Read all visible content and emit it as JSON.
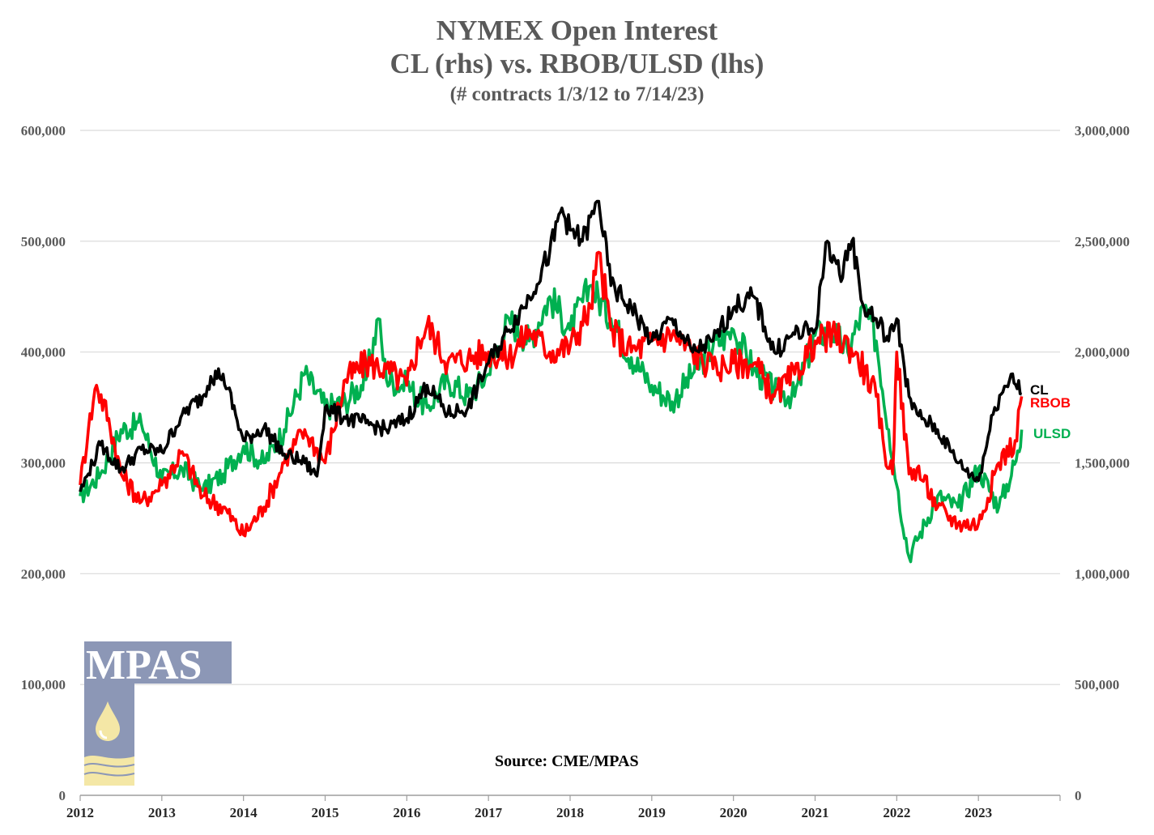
{
  "chart_data": {
    "type": "line",
    "title": "NYMEX Open Interest",
    "subtitle": "CL (rhs) vs. RBOB/ULSD (lhs)",
    "note": "(# contracts 1/3/12 to 7/14/23)",
    "source": "Source: CME/MPAS",
    "logo_text": "MPAS",
    "x_ticks": [
      "2012",
      "2013",
      "2014",
      "2015",
      "2016",
      "2017",
      "2018",
      "2019",
      "2020",
      "2021",
      "2022",
      "2023"
    ],
    "xlim": [
      2012.0,
      2024.0
    ],
    "y_left": {
      "ticks": [
        0,
        100000,
        200000,
        300000,
        400000,
        500000,
        600000
      ],
      "tick_labels": [
        "0",
        "100,000",
        "200,000",
        "300,000",
        "400,000",
        "500,000",
        "600,000"
      ],
      "ylim": [
        0,
        600000
      ]
    },
    "y_right": {
      "ticks": [
        0,
        500000,
        1000000,
        1500000,
        2000000,
        2500000,
        3000000
      ],
      "tick_labels": [
        "0",
        "500,000",
        "1,000,000",
        "1,500,000",
        "2,000,000",
        "2,500,000",
        "3,000,000"
      ],
      "ylim": [
        0,
        3000000
      ]
    },
    "grid": true,
    "legend": "inline-right",
    "series": [
      {
        "name": "ULSD",
        "axis": "left",
        "color": "#00B050",
        "x": [
          2012.0,
          2012.25,
          2012.5,
          2012.75,
          2013.0,
          2013.25,
          2013.5,
          2013.75,
          2014.0,
          2014.25,
          2014.5,
          2014.75,
          2015.0,
          2015.25,
          2015.5,
          2015.65,
          2015.75,
          2016.0,
          2016.25,
          2016.5,
          2016.75,
          2017.0,
          2017.25,
          2017.5,
          2017.75,
          2018.0,
          2018.25,
          2018.5,
          2018.75,
          2019.0,
          2019.25,
          2019.5,
          2019.75,
          2020.0,
          2020.25,
          2020.5,
          2020.75,
          2021.0,
          2021.2,
          2021.4,
          2021.6,
          2021.75,
          2021.9,
          2022.0,
          2022.15,
          2022.25,
          2022.5,
          2022.75,
          2023.0,
          2023.25,
          2023.5,
          2023.53
        ],
        "values": [
          270000,
          290000,
          330000,
          335000,
          285000,
          295000,
          275000,
          290000,
          315000,
          300000,
          330000,
          380000,
          350000,
          355000,
          375000,
          430000,
          375000,
          370000,
          350000,
          375000,
          360000,
          380000,
          430000,
          410000,
          450000,
          420000,
          460000,
          430000,
          395000,
          370000,
          355000,
          380000,
          405000,
          420000,
          385000,
          365000,
          360000,
          415000,
          420000,
          400000,
          440000,
          410000,
          330000,
          280000,
          215000,
          230000,
          270000,
          260000,
          295000,
          260000,
          310000,
          330000
        ]
      },
      {
        "name": "RBOB",
        "axis": "left",
        "color": "#FF0000",
        "x": [
          2012.0,
          2012.1,
          2012.2,
          2012.35,
          2012.5,
          2012.75,
          2013.0,
          2013.25,
          2013.5,
          2013.75,
          2014.0,
          2014.25,
          2014.5,
          2014.75,
          2015.0,
          2015.25,
          2015.5,
          2015.75,
          2016.0,
          2016.15,
          2016.25,
          2016.5,
          2016.75,
          2017.0,
          2017.25,
          2017.5,
          2017.75,
          2018.0,
          2018.25,
          2018.35,
          2018.5,
          2018.75,
          2019.0,
          2019.25,
          2019.5,
          2019.75,
          2020.0,
          2020.25,
          2020.5,
          2020.75,
          2021.0,
          2021.25,
          2021.5,
          2021.75,
          2021.85,
          2021.95,
          2022.0,
          2022.15,
          2022.25,
          2022.5,
          2022.75,
          2023.0,
          2023.25,
          2023.45,
          2023.53
        ],
        "values": [
          280000,
          330000,
          370000,
          340000,
          290000,
          265000,
          280000,
          310000,
          270000,
          260000,
          235000,
          260000,
          300000,
          330000,
          300000,
          375000,
          390000,
          385000,
          370000,
          410000,
          425000,
          390000,
          395000,
          400000,
          395000,
          420000,
          400000,
          405000,
          440000,
          490000,
          420000,
          400000,
          410000,
          415000,
          400000,
          385000,
          390000,
          390000,
          360000,
          380000,
          410000,
          415000,
          400000,
          360000,
          310000,
          290000,
          400000,
          290000,
          295000,
          260000,
          245000,
          245000,
          300000,
          320000,
          360000
        ]
      },
      {
        "name": "CL",
        "axis": "right",
        "color": "#000000",
        "x": [
          2012.0,
          2012.1,
          2012.25,
          2012.5,
          2012.75,
          2013.0,
          2013.25,
          2013.5,
          2013.6,
          2013.75,
          2014.0,
          2014.25,
          2014.5,
          2014.75,
          2014.9,
          2015.0,
          2015.25,
          2015.5,
          2015.75,
          2016.0,
          2016.25,
          2016.5,
          2016.75,
          2017.0,
          2017.25,
          2017.5,
          2017.75,
          2017.9,
          2018.0,
          2018.15,
          2018.35,
          2018.5,
          2018.75,
          2019.0,
          2019.25,
          2019.5,
          2019.75,
          2020.0,
          2020.25,
          2020.5,
          2020.75,
          2021.0,
          2021.15,
          2021.3,
          2021.45,
          2021.6,
          2021.75,
          2021.9,
          2022.0,
          2022.15,
          2022.25,
          2022.5,
          2022.75,
          2023.0,
          2023.2,
          2023.4,
          2023.53
        ],
        "values": [
          1370000,
          1450000,
          1580000,
          1470000,
          1560000,
          1550000,
          1720000,
          1800000,
          1890000,
          1900000,
          1600000,
          1660000,
          1540000,
          1500000,
          1440000,
          1750000,
          1700000,
          1680000,
          1650000,
          1700000,
          1850000,
          1720000,
          1750000,
          1950000,
          2100000,
          2250000,
          2450000,
          2650000,
          2550000,
          2500000,
          2680000,
          2300000,
          2200000,
          2050000,
          2150000,
          2000000,
          2050000,
          2200000,
          2250000,
          2000000,
          2080000,
          2100000,
          2500000,
          2350000,
          2500000,
          2200000,
          2150000,
          2050000,
          2150000,
          1800000,
          1720000,
          1650000,
          1500000,
          1420000,
          1750000,
          1900000,
          1810000
        ]
      }
    ]
  }
}
